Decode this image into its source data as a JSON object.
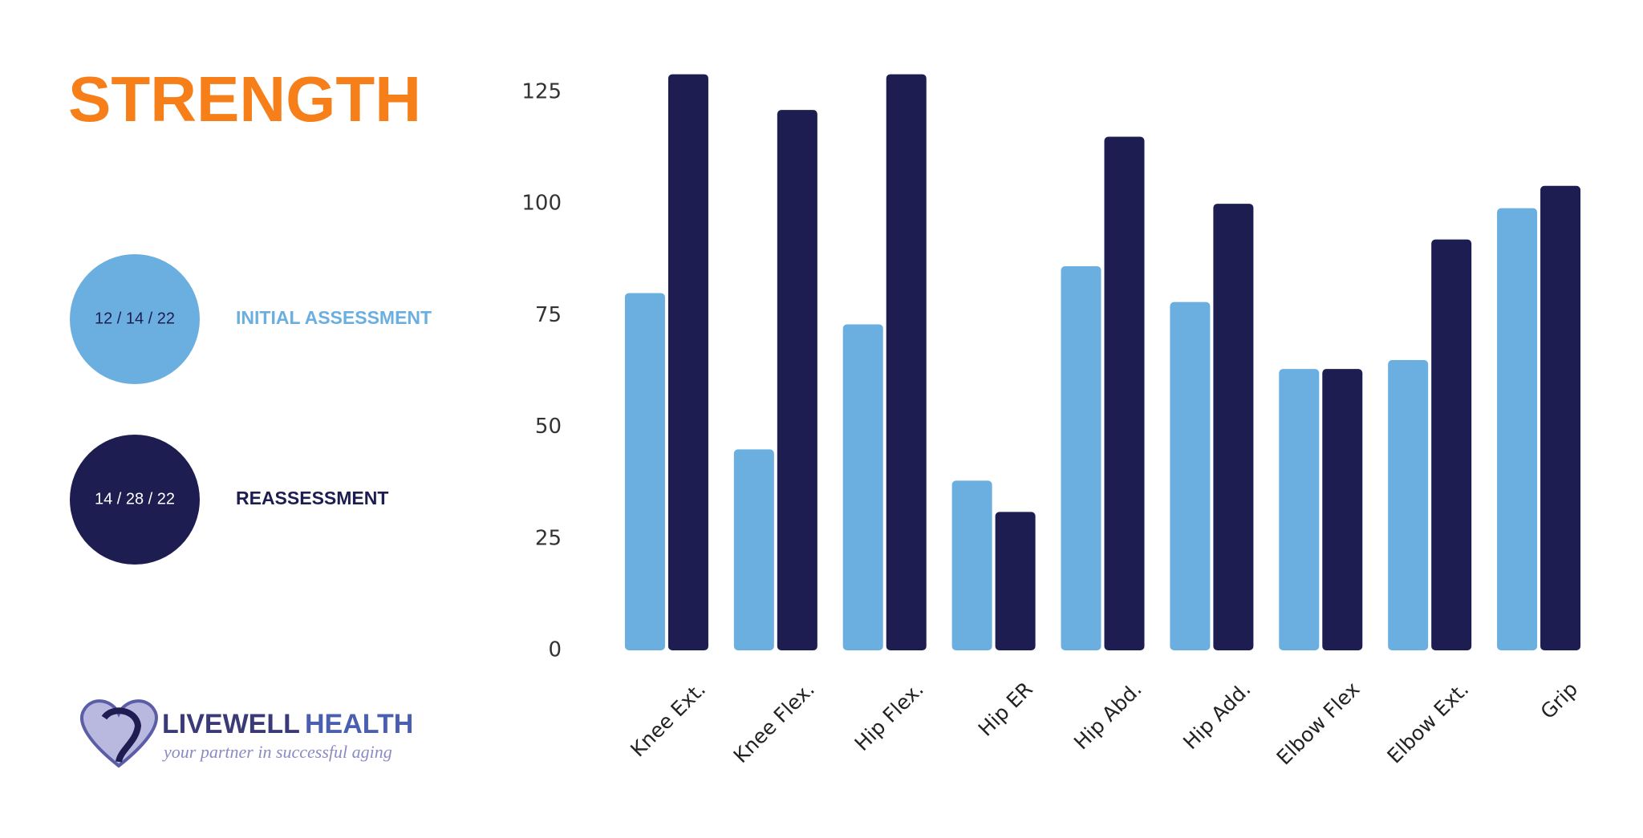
{
  "chart_data": {
    "type": "bar",
    "title": "STRENGTH",
    "categories": [
      "Knee Ext.",
      "Knee Flex.",
      "Hip Flex.",
      "Hip ER",
      "Hip Abd.",
      "Hip Add.",
      "Elbow Flex",
      "Elbow Ext.",
      "Grip"
    ],
    "series": [
      {
        "name": "INITIAL ASSESSMENT",
        "date": "12 / 14 / 22",
        "color": "#6aafe0",
        "values": [
          80,
          45,
          73,
          38,
          86,
          78,
          63,
          65,
          99
        ]
      },
      {
        "name": "REASSESSMENT",
        "date": "14 / 28 / 22",
        "color": "#1d1d52",
        "values": [
          129,
          121,
          129,
          31,
          115,
          100,
          63,
          92,
          104
        ]
      }
    ],
    "ylim": [
      0,
      130
    ],
    "yticks": [
      0,
      25,
      50,
      75,
      100,
      125
    ],
    "grid": false
  },
  "logo": {
    "name": "LIVEWELL",
    "name2": "HEALTH",
    "tagline": "your partner in successful aging"
  }
}
